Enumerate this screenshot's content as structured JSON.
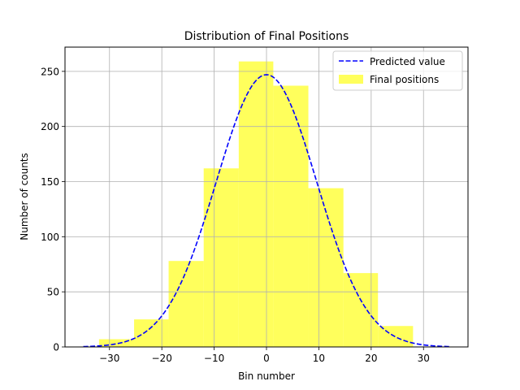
{
  "chart_data": {
    "type": "bar",
    "title": "Distribution of Final Positions",
    "xlabel": "Bin number",
    "ylabel": "Number of counts",
    "xlim": [
      -38.5,
      38.5
    ],
    "ylim": [
      0,
      272
    ],
    "xticks": [
      -30,
      -20,
      -10,
      0,
      10,
      20,
      30
    ],
    "xtick_labels": [
      "−30",
      "−20",
      "−10",
      "0",
      "10",
      "20",
      "30"
    ],
    "yticks": [
      0,
      50,
      100,
      150,
      200,
      250
    ],
    "ytick_labels": [
      "0",
      "50",
      "100",
      "150",
      "200",
      "250"
    ],
    "grid": true,
    "legend_position": "top-right",
    "histogram": {
      "name": "Final positions",
      "color": "#ffff33",
      "bin_edges": [
        -32.0,
        -25.3,
        -18.7,
        -12.0,
        -5.3,
        1.3,
        8.0,
        14.7,
        21.3,
        28.0
      ],
      "counts": [
        7,
        25,
        78,
        162,
        259,
        237,
        144,
        67,
        19
      ]
    },
    "curve": {
      "name": "Predicted value",
      "color": "#0000ff",
      "style": "dashed",
      "peak": 247,
      "center": 0,
      "sigma": 9.6,
      "x_range": [
        -35,
        35
      ]
    }
  }
}
